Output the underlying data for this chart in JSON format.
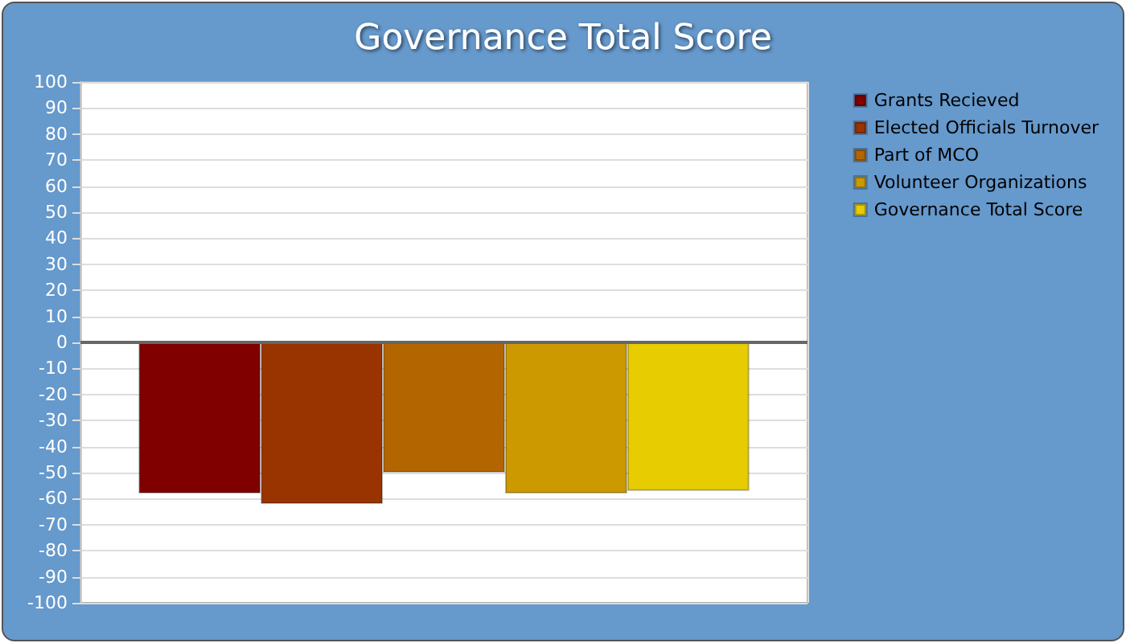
{
  "chart_data": {
    "type": "bar",
    "title": "Governance Total Score",
    "categories": [
      null
    ],
    "series": [
      {
        "name": "Grants Recieved",
        "color": "#800000",
        "values": [
          -58
        ]
      },
      {
        "name": "Elected Officials Turnover",
        "color": "#993300",
        "values": [
          -62
        ]
      },
      {
        "name": "Part of MCO",
        "color": "#b36600",
        "values": [
          -50
        ]
      },
      {
        "name": "Volunteer Organizations",
        "color": "#cc9900",
        "values": [
          -58
        ]
      },
      {
        "name": "Governance Total Score",
        "color": "#e6cc00",
        "values": [
          -57
        ]
      }
    ],
    "ylim": [
      -100,
      100
    ],
    "yticks": [
      -100,
      -90,
      -80,
      -70,
      -60,
      -50,
      -40,
      -30,
      -20,
      -10,
      0,
      10,
      20,
      30,
      40,
      50,
      60,
      70,
      80,
      90,
      100
    ],
    "grid": true,
    "legend": "right"
  }
}
